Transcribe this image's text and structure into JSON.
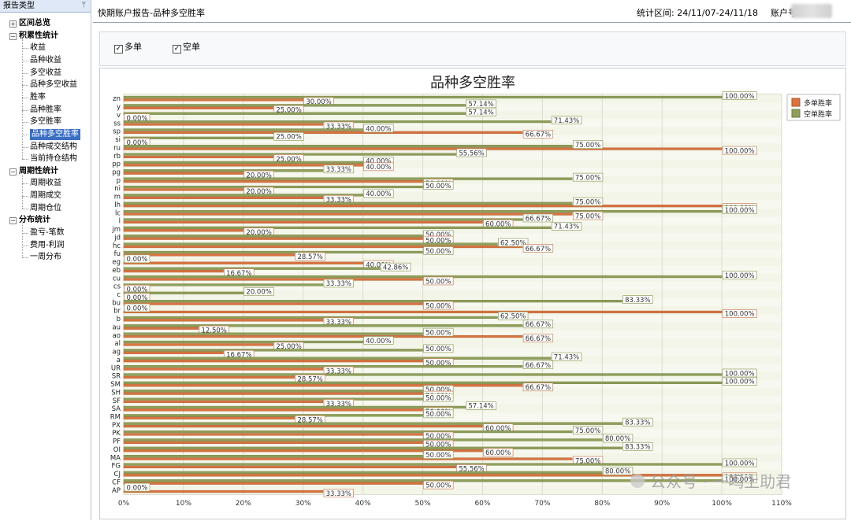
{
  "sidebar": {
    "header": "报告类型",
    "pin_icon": "pin-icon",
    "items": [
      {
        "label": "区间总览",
        "level": 0,
        "group": true,
        "expand": "+"
      },
      {
        "label": "积累性统计",
        "level": 0,
        "group": true,
        "expand": "-"
      },
      {
        "label": "收益",
        "level": 1
      },
      {
        "label": "品种收益",
        "level": 1
      },
      {
        "label": "多空收益",
        "level": 1
      },
      {
        "label": "品种多空收益",
        "level": 1
      },
      {
        "label": "胜率",
        "level": 1
      },
      {
        "label": "品种胜率",
        "level": 1
      },
      {
        "label": "多空胜率",
        "level": 1
      },
      {
        "label": "品种多空胜率",
        "level": 1,
        "selected": true
      },
      {
        "label": "品种成交结构",
        "level": 1
      },
      {
        "label": "当前持仓结构",
        "level": 1
      },
      {
        "label": "周期性统计",
        "level": 0,
        "group": true,
        "expand": "-"
      },
      {
        "label": "周期收益",
        "level": 1
      },
      {
        "label": "周期成交",
        "level": 1
      },
      {
        "label": "周期仓位",
        "level": 1
      },
      {
        "label": "分布统计",
        "level": 0,
        "group": true,
        "expand": "-"
      },
      {
        "label": "盈亏-笔数",
        "level": 1
      },
      {
        "label": "费用-利润",
        "level": 1
      },
      {
        "label": "一周分布",
        "level": 1
      }
    ]
  },
  "header": {
    "title": "快期账户报告-品种多空胜率",
    "date_range": "统计区间: 24/11/07-24/11/18",
    "account_label": "账户号"
  },
  "filters": {
    "long_label": "多单",
    "long_checked": true,
    "short_label": "空单",
    "short_checked": true
  },
  "watermark": {
    "text": "公众号 · 一鸣上助君",
    "icon": "wechat-icon"
  },
  "colors": {
    "long": "#d9733f",
    "short": "#8f9f5a",
    "plot_bg": "#f3f5e8",
    "grid": "#d9dcc8"
  },
  "chart_data": {
    "type": "bar",
    "orientation": "horizontal",
    "title": "品种多空胜率",
    "legend_position": "top-right",
    "grid": true,
    "xlim": [
      0,
      110
    ],
    "x_ticks": [
      "0%",
      "10%",
      "20%",
      "30%",
      "40%",
      "50%",
      "60%",
      "70%",
      "80%",
      "90%",
      "100%",
      "110%"
    ],
    "categories": [
      "zn",
      "y",
      "v",
      "ss",
      "sp",
      "si",
      "ru",
      "rb",
      "pp",
      "pg",
      "p",
      "ni",
      "m",
      "lh",
      "lc",
      "l",
      "jm",
      "jd",
      "hc",
      "fu",
      "eg",
      "eb",
      "cu",
      "cs",
      "c",
      "bu",
      "br",
      "b",
      "au",
      "ao",
      "al",
      "ag",
      "a",
      "UR",
      "SR",
      "SM",
      "SH",
      "SF",
      "SA",
      "RM",
      "PX",
      "PK",
      "PF",
      "OI",
      "MA",
      "FG",
      "CJ",
      "CF",
      "AP"
    ],
    "series": [
      {
        "name": "多单胜率",
        "values": [
          30,
          25,
          0,
          33.33,
          66.67,
          0,
          100,
          25,
          40,
          20,
          50,
          20,
          33.33,
          100,
          75,
          60,
          20,
          50,
          66.67,
          28.57,
          40,
          16.67,
          50,
          0,
          0,
          50,
          100,
          33.33,
          12.5,
          66.67,
          25,
          16.67,
          50,
          33.33,
          28.57,
          66.67,
          50,
          33.33,
          50,
          28.57,
          60,
          50,
          50,
          60,
          75,
          55.56,
          100,
          50,
          33.33
        ],
        "labels": [
          "30.00%",
          "25.00%",
          "0.00%",
          "33.33%",
          "66.67%",
          "0.00%",
          "100.00%",
          "25.00%",
          "40.00%",
          "20.00%",
          "50.00%",
          "20.00%",
          "33.33%",
          "100.00%",
          "75.00%",
          "60.00%",
          "20.00%",
          "50.00%",
          "66.67%",
          "28.57%",
          "40.00%",
          "16.67%",
          "50.00%",
          "0.00%",
          "0.00%",
          "50.00%",
          "100.00%",
          "33.33%",
          "12.50%",
          "66.67%",
          "25.00%",
          "16.67%",
          "50.00%",
          "33.33%",
          "28.57%",
          "66.67%",
          "50.00%",
          "33.33%",
          "50.00%",
          "28.57%",
          "60.00%",
          "50.00%",
          "50.00%",
          "60.00%",
          "75.00%",
          "55.56%",
          "100.00%",
          "50.00%",
          "33.33%"
        ]
      },
      {
        "name": "空单胜率",
        "values": [
          100,
          57.14,
          57.14,
          71.43,
          40,
          25,
          75,
          55.56,
          40,
          33.33,
          75,
          50,
          40,
          75,
          100,
          66.67,
          71.43,
          50,
          62.5,
          50,
          0,
          42.86,
          100,
          33.33,
          20,
          83.33,
          0,
          62.5,
          66.67,
          50,
          40,
          50,
          71.43,
          66.67,
          100,
          100,
          50,
          50,
          57.14,
          50,
          83.33,
          75,
          80,
          83.33,
          50,
          100,
          80,
          100,
          0
        ],
        "labels": [
          "100.00%",
          "57.14%",
          "57.14%",
          "71.43%",
          "40.00%",
          "25.00%",
          "75.00%",
          "55.56%",
          "40.00%",
          "33.33%",
          "75.00%",
          "50.00%",
          "40.00%",
          "75.00%",
          "100.00%",
          "66.67%",
          "71.43%",
          "50.00%",
          "62.50%",
          "50.00%",
          "0.00%",
          "42.86%",
          "100.00%",
          "33.33%",
          "20.00%",
          "83.33%",
          "0.00%",
          "62.50%",
          "66.67%",
          "50.00%",
          "40.00%",
          "50.00%",
          "71.43%",
          "66.67%",
          "100.00%",
          "100.00%",
          "50.00%",
          "50.00%",
          "57.14%",
          "50.00%",
          "83.33%",
          "75.00%",
          "80.00%",
          "83.33%",
          "50.00%",
          "100.00%",
          "80.00%",
          "100.00%",
          "0.00%"
        ]
      }
    ]
  }
}
